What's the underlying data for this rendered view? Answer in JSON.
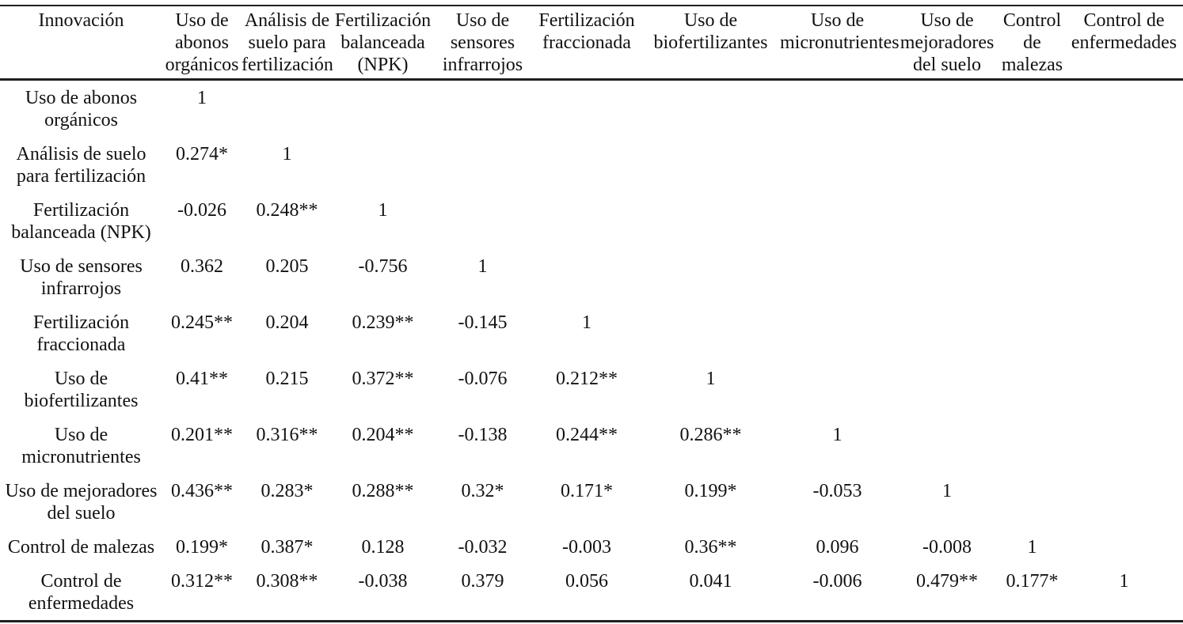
{
  "table": {
    "columns": [
      {
        "label": "Innovación"
      },
      {
        "label": "Uso de\nabonos\norgánicos"
      },
      {
        "label": "Análisis de\nsuelo para\nfertilización"
      },
      {
        "label": "Fertilización\nbalanceada\n(NPK)"
      },
      {
        "label": "Uso de\nsensores\ninfrarrojos"
      },
      {
        "label": "Fertilización\nfraccionada"
      },
      {
        "label": "Uso de\nbiofertilizantes"
      },
      {
        "label": "Uso de\nmicronutrientes"
      },
      {
        "label": "Uso de\nmejoradores\ndel suelo"
      },
      {
        "label": "Control\nde\nmalezas"
      },
      {
        "label": "Control de\nenfermedades"
      }
    ],
    "rows": [
      {
        "label": "Uso de abonos\norgánicos",
        "values": [
          "1"
        ]
      },
      {
        "label": "Análisis de suelo\npara fertilización",
        "values": [
          "0.274*",
          "1"
        ]
      },
      {
        "label": "Fertilización\nbalanceada (NPK)",
        "values": [
          "-0.026",
          "0.248**",
          "1"
        ]
      },
      {
        "label": "Uso de sensores\ninfrarrojos",
        "values": [
          "0.362",
          "0.205",
          "-0.756",
          "1"
        ]
      },
      {
        "label": "Fertilización\nfraccionada",
        "values": [
          "0.245**",
          "0.204",
          "0.239**",
          "-0.145",
          "1"
        ]
      },
      {
        "label": "Uso de\nbiofertilizantes",
        "values": [
          "0.41**",
          "0.215",
          "0.372**",
          "-0.076",
          "0.212**",
          "1"
        ]
      },
      {
        "label": "Uso de\nmicronutrientes",
        "values": [
          "0.201**",
          "0.316**",
          "0.204**",
          "-0.138",
          "0.244**",
          "0.286**",
          "1"
        ]
      },
      {
        "label": "Uso de mejoradores\ndel suelo",
        "values": [
          "0.436**",
          "0.283*",
          "0.288**",
          "0.32*",
          "0.171*",
          "0.199*",
          "-0.053",
          "1"
        ]
      },
      {
        "label": "Control de malezas",
        "values": [
          "0.199*",
          "0.387*",
          "0.128",
          "-0.032",
          "-0.003",
          "0.36**",
          "0.096",
          "-0.008",
          "1"
        ]
      },
      {
        "label": "Control de\nenfermedades",
        "values": [
          "0.312**",
          "0.308**",
          "-0.038",
          "0.379",
          "0.056",
          "0.041",
          "-0.006",
          "0.479**",
          "0.177*",
          "1"
        ]
      }
    ]
  },
  "colors": {
    "text": "#121212",
    "background": "#ffffff",
    "rule": "#1f1f1f"
  }
}
